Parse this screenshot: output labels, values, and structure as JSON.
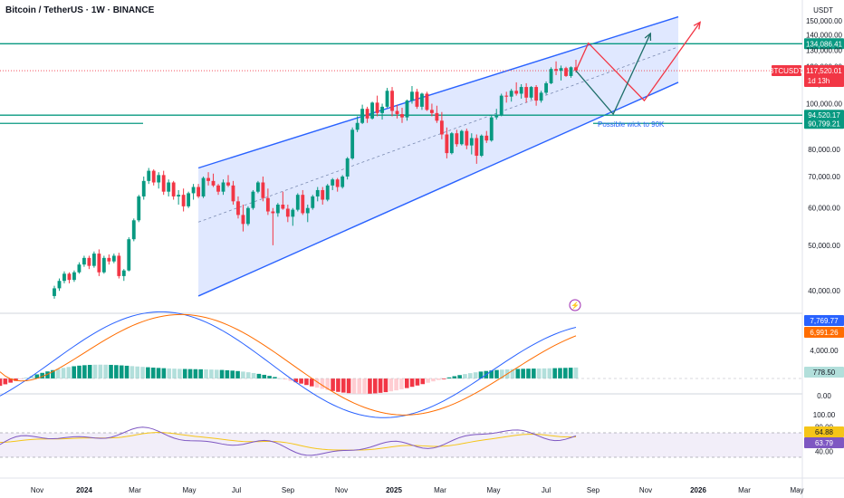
{
  "header": {
    "title": "Bitcoin / TetherUS · 1W · BINANCE",
    "currency": "USDT"
  },
  "colors": {
    "up": "#089981",
    "down": "#f23645",
    "channel_line": "#2962ff",
    "channel_fill": "#dbe4ff",
    "support": "#089981",
    "scenario_a": "#1f6f6b",
    "scenario_b": "#f23645",
    "macd_line": "#2962ff",
    "signal_line": "#ff6d00",
    "rsi_line": "#7e57c2",
    "rsi_ma": "#f5c518",
    "rsi_band": "#ede7f6"
  },
  "chart_data": [
    {
      "type": "candlestick",
      "name": "price",
      "y_axis": {
        "min": 36000,
        "max": 152000,
        "ticks": [
          "150,000.00",
          "140,000.00",
          "130,000.00",
          "120,000.00",
          "110,000.00",
          "100,000.00",
          "80,000.00",
          "70,000.00",
          "60,000.00",
          "50,000.00",
          "40,000.00"
        ],
        "tick_values": [
          150000,
          140000,
          130000,
          120000,
          110000,
          100000,
          80000,
          70000,
          60000,
          50000,
          40000
        ]
      },
      "x_axis": {
        "ticks": [
          "Nov",
          "2024",
          "Mar",
          "May",
          "Jul",
          "Sep",
          "Nov",
          "2025",
          "Mar",
          "May",
          "Jul",
          "Sep",
          "Nov",
          "2026",
          "Mar",
          "May"
        ]
      },
      "candles": [
        [
          39000,
          41000,
          38500,
          40500
        ],
        [
          40500,
          42500,
          40000,
          42000
        ],
        [
          42000,
          44000,
          41500,
          43500
        ],
        [
          43500,
          43800,
          41500,
          42200
        ],
        [
          42200,
          44200,
          41800,
          43800
        ],
        [
          43800,
          46000,
          43500,
          45500
        ],
        [
          45500,
          47500,
          45000,
          47000
        ],
        [
          47000,
          47500,
          44500,
          45200
        ],
        [
          45200,
          48500,
          44800,
          48000
        ],
        [
          48000,
          49000,
          43000,
          43800
        ],
        [
          43800,
          47500,
          43500,
          47000
        ],
        [
          47000,
          47800,
          45500,
          46200
        ],
        [
          46200,
          48000,
          45800,
          47500
        ],
        [
          47500,
          48200,
          42500,
          43000
        ],
        [
          43000,
          44500,
          42000,
          44200
        ],
        [
          44200,
          52000,
          44000,
          51500
        ],
        [
          51500,
          57000,
          51000,
          56500
        ],
        [
          56500,
          64000,
          56000,
          63500
        ],
        [
          63500,
          70000,
          62500,
          68500
        ],
        [
          68500,
          73000,
          67500,
          72000
        ],
        [
          72000,
          72500,
          67000,
          68000
        ],
        [
          68000,
          71500,
          66000,
          70500
        ],
        [
          70500,
          72000,
          64000,
          65000
        ],
        [
          65000,
          69000,
          63500,
          68000
        ],
        [
          68000,
          68500,
          62500,
          63500
        ],
        [
          63500,
          65500,
          61000,
          64000
        ],
        [
          64000,
          66000,
          59000,
          60500
        ],
        [
          60500,
          65000,
          60000,
          64500
        ],
        [
          64500,
          67500,
          62500,
          66500
        ],
        [
          66500,
          67500,
          63000,
          63500
        ],
        [
          63500,
          70000,
          63000,
          69500
        ],
        [
          69500,
          71500,
          67000,
          68500
        ],
        [
          68500,
          71000,
          66500,
          67000
        ],
        [
          67000,
          67500,
          64000,
          65000
        ],
        [
          65000,
          69000,
          64000,
          68000
        ],
        [
          68000,
          70500,
          66500,
          67000
        ],
        [
          67000,
          68500,
          61000,
          62000
        ],
        [
          62000,
          63500,
          57000,
          58000
        ],
        [
          58000,
          61000,
          53500,
          55500
        ],
        [
          55500,
          60500,
          55000,
          60000
        ],
        [
          60000,
          65500,
          59500,
          65000
        ],
        [
          65000,
          68500,
          64500,
          68000
        ],
        [
          68000,
          70000,
          62000,
          63000
        ],
        [
          63000,
          66000,
          58000,
          59000
        ],
        [
          59000,
          60000,
          50000,
          58500
        ],
        [
          58500,
          61500,
          57500,
          61000
        ],
        [
          61000,
          65000,
          59500,
          59800
        ],
        [
          59800,
          61000,
          56000,
          57500
        ],
        [
          57500,
          60000,
          55000,
          59500
        ],
        [
          59500,
          64500,
          59000,
          64000
        ],
        [
          64000,
          65500,
          58000,
          58500
        ],
        [
          58500,
          61000,
          56000,
          60000
        ],
        [
          60000,
          64000,
          59500,
          63500
        ],
        [
          63500,
          66500,
          62000,
          65500
        ],
        [
          65500,
          66500,
          61000,
          62500
        ],
        [
          62500,
          67500,
          62000,
          67000
        ],
        [
          67000,
          69500,
          65500,
          69000
        ],
        [
          69000,
          69500,
          65000,
          66500
        ],
        [
          66500,
          70500,
          66000,
          70000
        ],
        [
          70000,
          77000,
          69000,
          76500
        ],
        [
          76500,
          89000,
          76000,
          88000
        ],
        [
          88000,
          94000,
          87000,
          91000
        ],
        [
          91000,
          99500,
          90500,
          97500
        ],
        [
          97500,
          98500,
          91000,
          93000
        ],
        [
          93000,
          101000,
          92500,
          100500
        ],
        [
          100500,
          104000,
          94000,
          95500
        ],
        [
          95500,
          100000,
          92500,
          98500
        ],
        [
          98500,
          108000,
          98000,
          106500
        ],
        [
          106500,
          108500,
          94000,
          96500
        ],
        [
          96500,
          99500,
          93000,
          95000
        ],
        [
          95000,
          98000,
          91000,
          93500
        ],
        [
          93500,
          102000,
          92000,
          101500
        ],
        [
          101500,
          109000,
          100000,
          106000
        ],
        [
          106000,
          107500,
          97500,
          98500
        ],
        [
          98500,
          105500,
          97000,
          105000
        ],
        [
          105000,
          106000,
          96500,
          97000
        ],
        [
          97000,
          100000,
          94000,
          95500
        ],
        [
          95500,
          99000,
          91000,
          92000
        ],
        [
          92000,
          96000,
          84000,
          86000
        ],
        [
          86000,
          89000,
          76500,
          78500
        ],
        [
          78500,
          87000,
          78000,
          86500
        ],
        [
          86500,
          88000,
          81000,
          82000
        ],
        [
          82000,
          88000,
          81500,
          87500
        ],
        [
          87500,
          88500,
          80000,
          81500
        ],
        [
          81500,
          86500,
          78000,
          84500
        ],
        [
          84500,
          86000,
          74500,
          77500
        ],
        [
          77500,
          86000,
          77000,
          85500
        ],
        [
          85500,
          87500,
          82500,
          83500
        ],
        [
          83500,
          94500,
          83000,
          93500
        ],
        [
          93500,
          97500,
          92500,
          94500
        ],
        [
          94500,
          105000,
          94000,
          104000
        ],
        [
          104000,
          106000,
          100500,
          103500
        ],
        [
          103500,
          107500,
          101000,
          106500
        ],
        [
          106500,
          111000,
          104000,
          105000
        ],
        [
          105000,
          110000,
          102500,
          108500
        ],
        [
          108500,
          110500,
          100500,
          103000
        ],
        [
          103000,
          109000,
          102000,
          108500
        ],
        [
          108500,
          109500,
          99000,
          101500
        ],
        [
          101500,
          106500,
          100500,
          105500
        ],
        [
          105500,
          111500,
          104500,
          110500
        ],
        [
          110500,
          119500,
          110000,
          118500
        ],
        [
          118500,
          123000,
          115000,
          117500
        ],
        [
          117500,
          120500,
          112000,
          119000
        ],
        [
          119000,
          119800,
          114000,
          114500
        ],
        [
          114500,
          120000,
          113500,
          119500
        ],
        [
          119500,
          124000,
          116500,
          117520
        ]
      ],
      "channel": {
        "upper": [
          [
            0,
            73000
          ],
          [
            69,
            153000
          ]
        ],
        "lower": [
          [
            0,
            39000
          ],
          [
            69,
            111000
          ]
        ],
        "mid": [
          [
            0,
            56000
          ],
          [
            69,
            132000
          ]
        ]
      },
      "support_lines": [
        {
          "value": 134086.41,
          "label": "134,086.41"
        },
        {
          "value": 94520.17,
          "label": "94,520.17"
        },
        {
          "value": 90799.21,
          "label": "90,799.21"
        }
      ],
      "last_price": {
        "value": 117520.01,
        "label": "117,520.01",
        "symbol": "BTCUSDT",
        "countdown": "1d 13h"
      },
      "scenarios": {
        "a": [
          [
            0,
            117520
          ],
          [
            6,
            95000
          ],
          [
            12,
            141000
          ]
        ],
        "b": [
          [
            0,
            117520
          ],
          [
            2,
            134500
          ],
          [
            11,
            101500
          ],
          [
            20,
            149000
          ]
        ]
      },
      "annotation": "Possible wick to 90K"
    },
    {
      "type": "line",
      "name": "macd",
      "ticks": [
        "4,000.00",
        "0.00"
      ],
      "tick_values": [
        4000,
        0
      ],
      "macd_last": "7,769.77",
      "signal_last": "6,991.26",
      "hist_last": "778.50"
    },
    {
      "type": "line",
      "name": "rsi",
      "ticks": [
        "100.00",
        "80.00",
        "40.00"
      ],
      "tick_values": [
        100,
        80,
        40
      ],
      "rsi_last": "63.79",
      "ma_last": "64.88",
      "upper_band": 70,
      "lower_band": 30
    }
  ]
}
